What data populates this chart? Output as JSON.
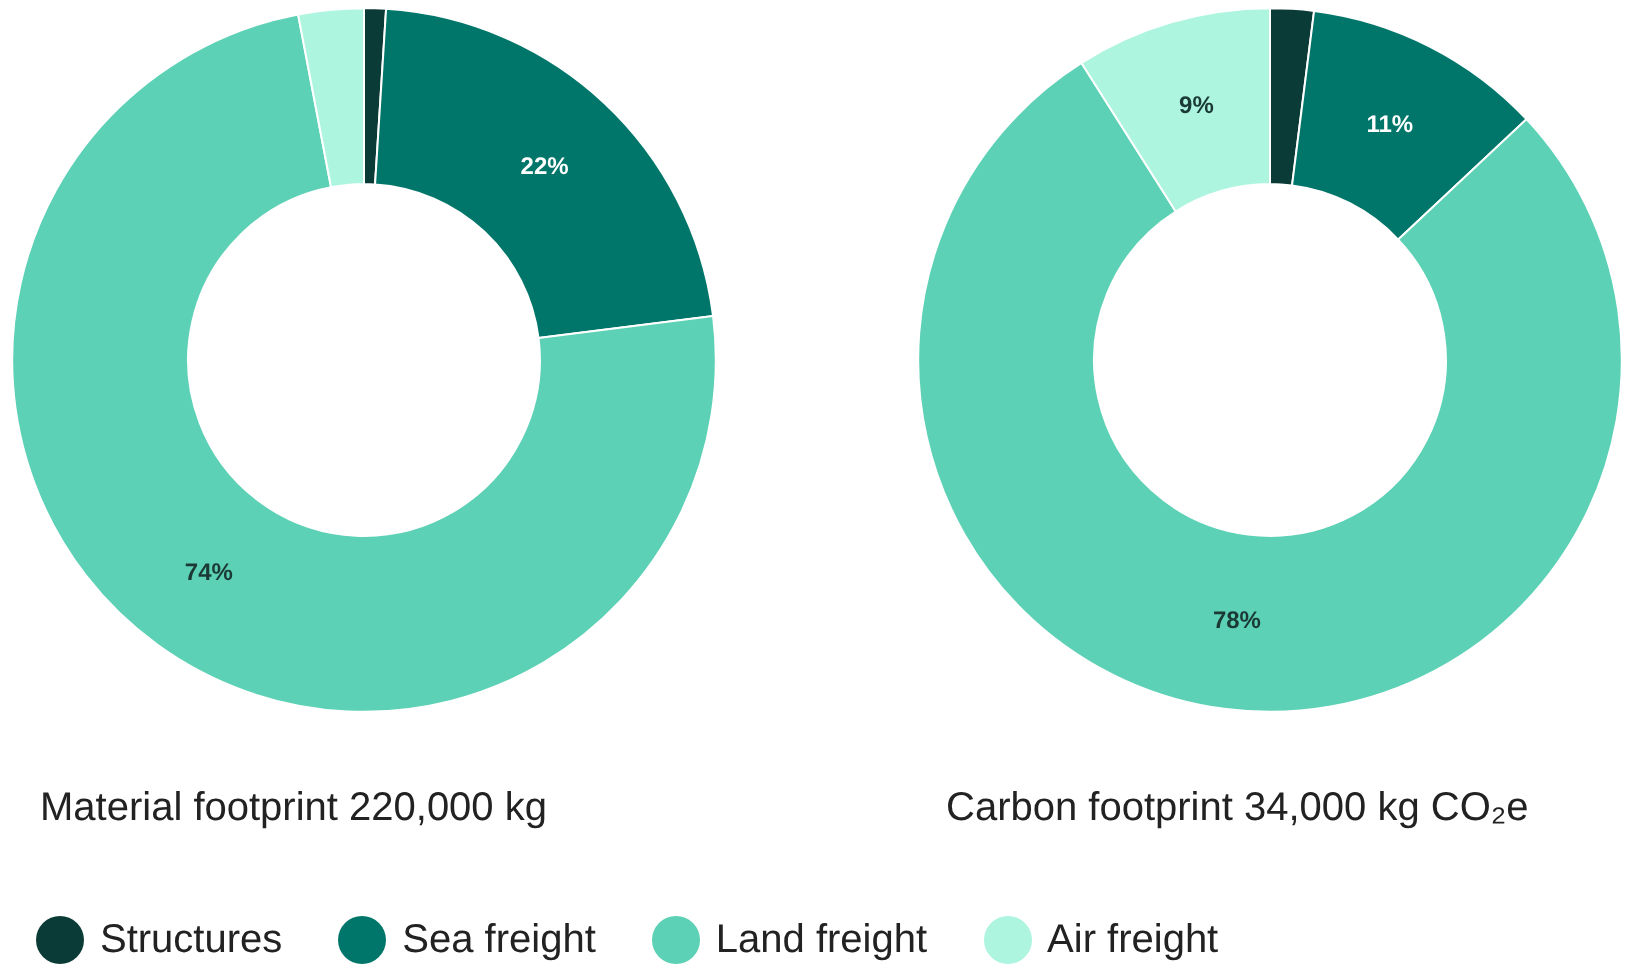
{
  "chart_data": [
    {
      "type": "donut",
      "title": "Material footprint 220,000 kg",
      "categories": [
        "Structures",
        "Sea freight",
        "Land freight",
        "Air freight"
      ],
      "values": [
        1,
        22,
        74,
        3
      ],
      "colors": [
        "#0b3b37",
        "#00766a",
        "#5cd1b5",
        "#aef5df"
      ],
      "value_labels": [
        null,
        "22%",
        "74%",
        null
      ],
      "legend": "bottom"
    },
    {
      "type": "donut",
      "title": "Carbon footprint 34,000 kg CO₂e",
      "categories": [
        null,
        null,
        null,
        null
      ],
      "values": [
        2,
        11,
        78,
        9
      ],
      "colors": [
        "#0b3b37",
        "#00766a",
        "#5cd1b5",
        "#aef5df"
      ],
      "value_labels": [
        null,
        "11%",
        "78%",
        "9%"
      ]
    }
  ]
}
